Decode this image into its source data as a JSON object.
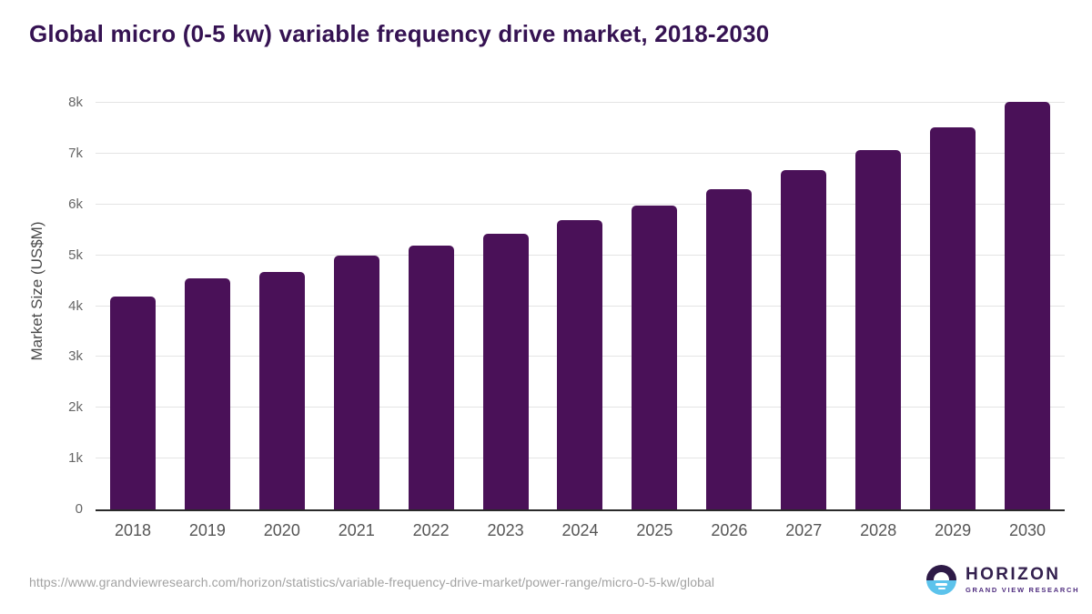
{
  "title": "Global micro (0-5 kw) variable frequency drive market, 2018-2030",
  "chart_data": {
    "type": "bar",
    "title": "Global micro (0-5 kw) variable frequency drive market, 2018-2030",
    "categories": [
      "2018",
      "2019",
      "2020",
      "2021",
      "2022",
      "2023",
      "2024",
      "2025",
      "2026",
      "2027",
      "2028",
      "2029",
      "2030"
    ],
    "values": [
      4180,
      4550,
      4670,
      4990,
      5190,
      5430,
      5690,
      5970,
      6300,
      6670,
      7070,
      7520,
      8020
    ],
    "xlabel": "",
    "ylabel": "Market Size (US$M)",
    "ylim": [
      0,
      8000
    ],
    "ytick_step": 1000,
    "ytick_labels": [
      "0",
      "1k",
      "2k",
      "3k",
      "4k",
      "5k",
      "6k",
      "7k",
      "8k"
    ],
    "grid": "horizontal",
    "legend": "none"
  },
  "colors": {
    "bar": "#4a1158",
    "title": "#351252",
    "gridline": "#e4e4e4",
    "axis_line": "#2a2a2a",
    "tick_text": "#666666",
    "logo_dark": "#2e1a47",
    "logo_blue": "#5cc3ec"
  },
  "footer": {
    "source_url": "https://www.grandviewresearch.com/horizon/statistics/variable-frequency-drive-market/power-range/micro-0-5-kw/global",
    "logo_name": "HORIZON",
    "logo_tagline": "GRAND VIEW RESEARCH"
  }
}
